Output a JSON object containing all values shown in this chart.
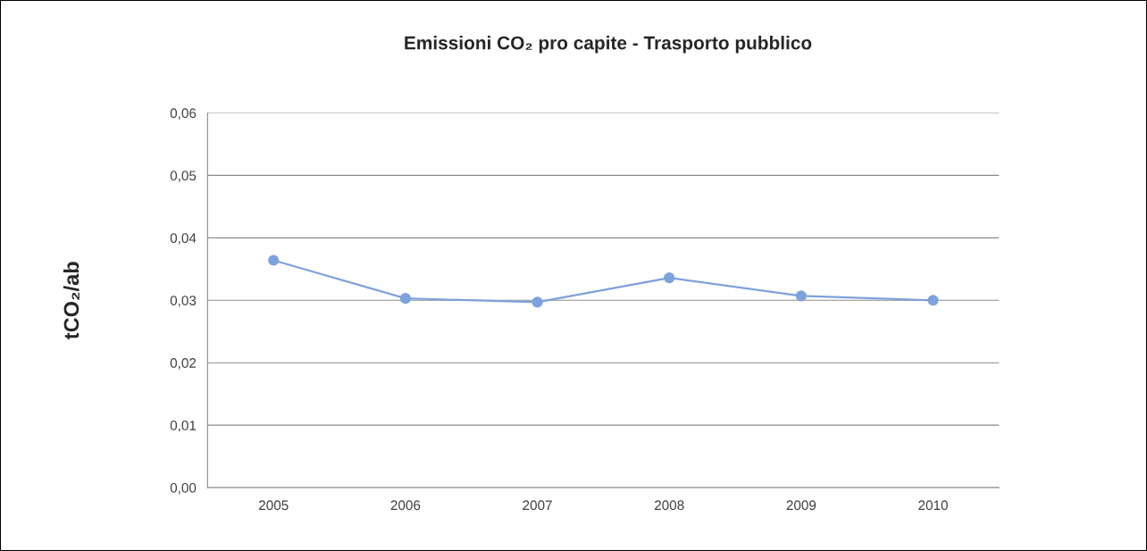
{
  "chart_data": {
    "type": "line",
    "title": "Emissioni CO₂ pro capite - Trasporto pubblico",
    "ylabel": "tCO₂/ab",
    "categories": [
      "2005",
      "2006",
      "2007",
      "2008",
      "2009",
      "2010"
    ],
    "series": [
      {
        "color": "#7da2dc",
        "values": [
          0.0364,
          0.0303,
          0.0297,
          0.0336,
          0.0307,
          0.03
        ]
      }
    ],
    "ylim": [
      0,
      0.06
    ],
    "yticks": [
      {
        "value": 0,
        "label": "0,00"
      },
      {
        "value": 0.01,
        "label": "0,01"
      },
      {
        "value": 0.02,
        "label": "0,02"
      },
      {
        "value": 0.03,
        "label": "0,03"
      },
      {
        "value": 0.04,
        "label": "0,04"
      },
      {
        "value": 0.05,
        "label": "0,05"
      },
      {
        "value": 0.06,
        "label": "0,06"
      }
    ],
    "grid": "y",
    "marker": "circle",
    "line_style": "solid"
  }
}
